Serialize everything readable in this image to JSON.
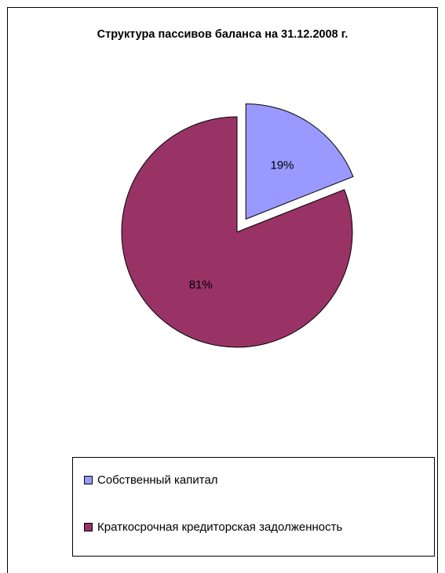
{
  "chart_data": {
    "type": "pie",
    "title": "Структура пассивов баланса на 31.12.2008 г.",
    "categories": [
      "Собственный капитал",
      "Краткосрочная кредиторская задолженность"
    ],
    "values": [
      19,
      81
    ],
    "data_labels": [
      "19%",
      "81%"
    ],
    "colors": [
      "#9999ff",
      "#993366"
    ],
    "exploded": [
      true,
      false
    ],
    "legend_position": "bottom"
  }
}
